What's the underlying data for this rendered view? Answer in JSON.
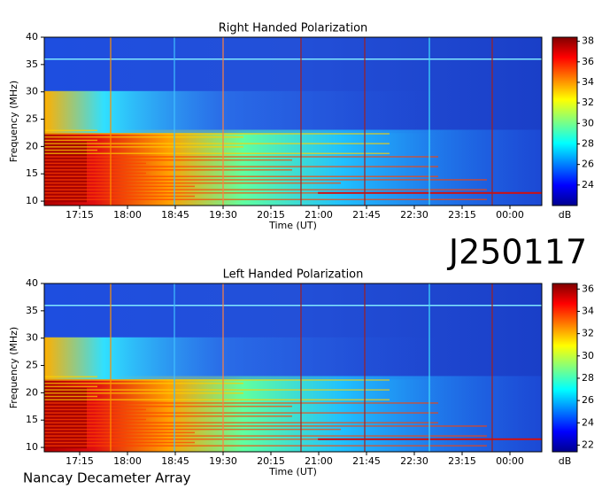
{
  "chart_data": [
    {
      "type": "heatmap",
      "title": "Right Handed Polarization",
      "xlabel": "Time (UT)",
      "ylabel": "Frequency (MHz)",
      "xticks": [
        "17:15",
        "18:00",
        "18:45",
        "19:30",
        "20:15",
        "21:00",
        "21:45",
        "22:30",
        "23:15",
        "00:00"
      ],
      "ylim": [
        9.2,
        40
      ],
      "yticks": [
        10,
        15,
        20,
        25,
        30,
        35,
        40
      ],
      "clim": [
        22,
        38.4
      ],
      "cticks": [
        24,
        26,
        28,
        30,
        32,
        34,
        36,
        38
      ],
      "colorbar_label": "dB",
      "colormap": "jet"
    },
    {
      "type": "heatmap",
      "title": "Left Handed Polarization",
      "xlabel": "Time (UT)",
      "ylabel": "Frequency (MHz)",
      "xticks": [
        "17:15",
        "18:00",
        "18:45",
        "19:30",
        "20:15",
        "21:00",
        "21:45",
        "22:30",
        "23:15",
        "00:00"
      ],
      "ylim": [
        9.2,
        40
      ],
      "yticks": [
        10,
        15,
        20,
        25,
        30,
        35,
        40
      ],
      "clim": [
        21.4,
        36.5
      ],
      "cticks": [
        22,
        24,
        26,
        28,
        30,
        32,
        34,
        36
      ],
      "colorbar_label": "dB",
      "colormap": "jet"
    }
  ],
  "figure_label": "J250117",
  "credit": "Nancay Decameter Array"
}
